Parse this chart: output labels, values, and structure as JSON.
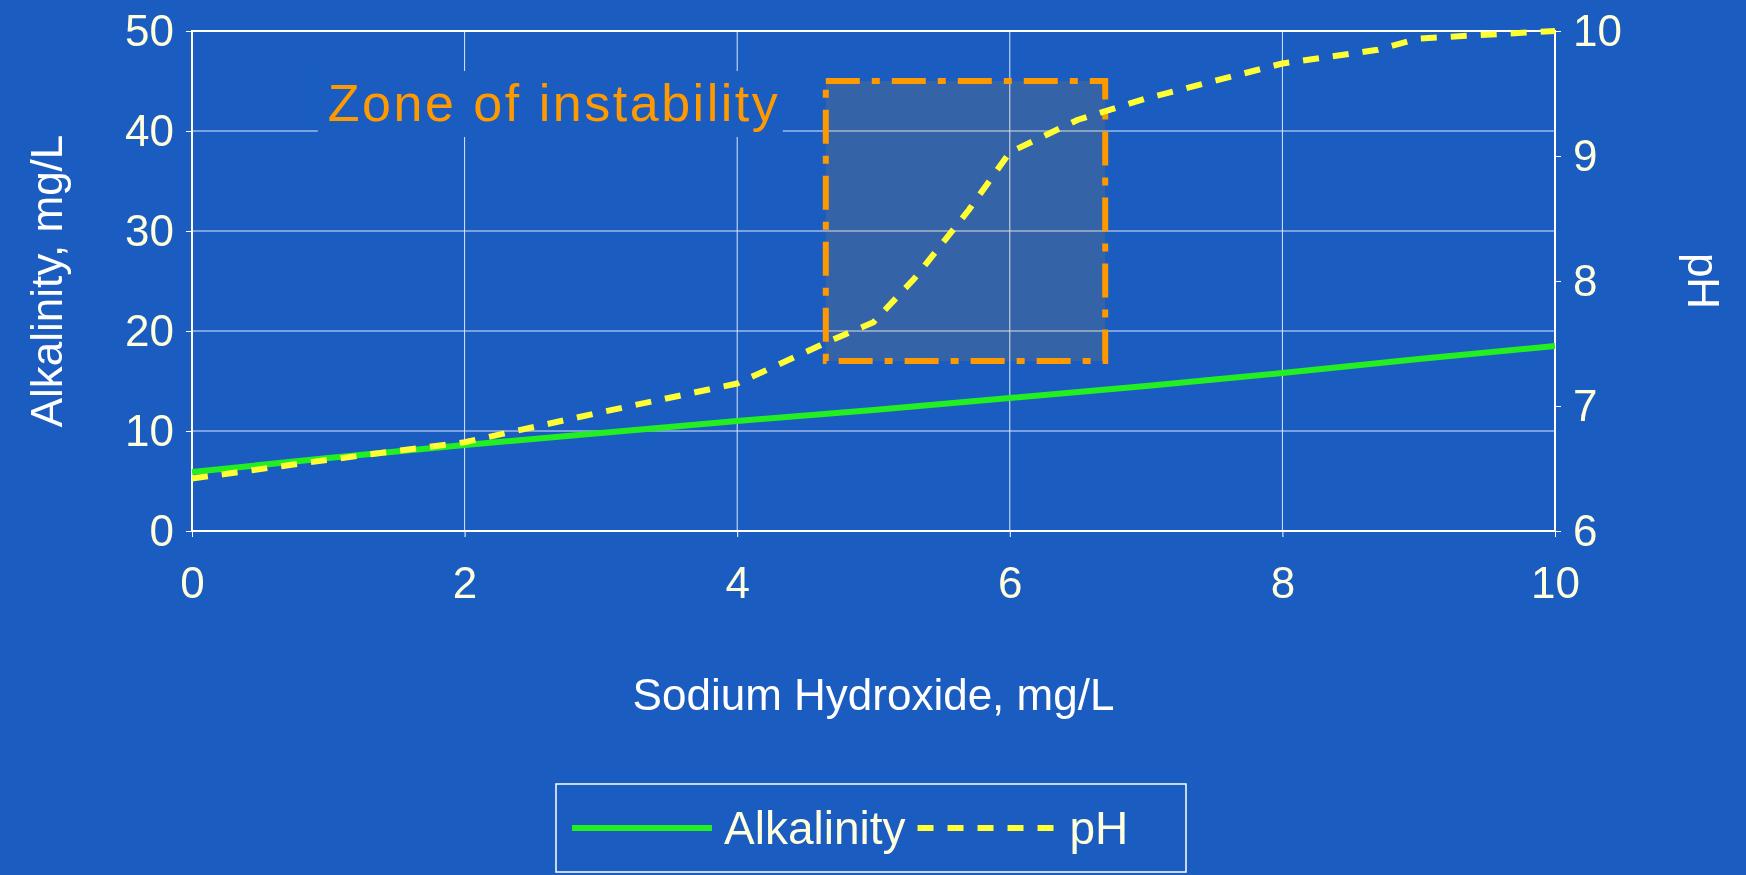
{
  "chart_data": {
    "type": "line",
    "xlabel": "Sodium Hydroxide, mg/L",
    "ylabel": "Alkalinity, mg/L",
    "y2label": "pH",
    "xlim": [
      0,
      10
    ],
    "xticks": [
      0,
      2,
      4,
      6,
      8,
      10
    ],
    "ylim": [
      0,
      50
    ],
    "yticks": [
      0,
      10,
      20,
      30,
      40,
      50
    ],
    "y2lim": [
      6,
      10
    ],
    "y2ticks": [
      6,
      7,
      8,
      9,
      10
    ],
    "grid": true,
    "legend": "bottom",
    "series": [
      {
        "name": "Alkalinity",
        "color": "#22ee22",
        "line_style": "solid",
        "x": [
          0,
          1,
          2,
          3,
          4,
          5,
          6,
          7,
          8,
          9,
          10
        ],
        "values": [
          5.9,
          7.3,
          8.6,
          9.8,
          11.0,
          12.1,
          13.3,
          14.5,
          15.8,
          17.2,
          18.5
        ]
      },
      {
        "name": "pH",
        "color": "#ffff33",
        "line_style": "dashed",
        "axis": "y2",
        "x": [
          0,
          1,
          2,
          3,
          4,
          4.7,
          5,
          5.3,
          5.7,
          6,
          6.5,
          7,
          7.5,
          8,
          8.7,
          9,
          10
        ],
        "values": [
          6.42,
          6.57,
          6.71,
          6.95,
          7.18,
          7.53,
          7.67,
          8.02,
          8.57,
          9.03,
          9.29,
          9.46,
          9.6,
          9.74,
          9.85,
          9.94,
          10.0
        ]
      }
    ],
    "bands": [
      {
        "axis": "x",
        "from": 4.65,
        "to": 6.7,
        "label": "Zone of instability",
        "color": "#ff9900"
      }
    ]
  }
}
